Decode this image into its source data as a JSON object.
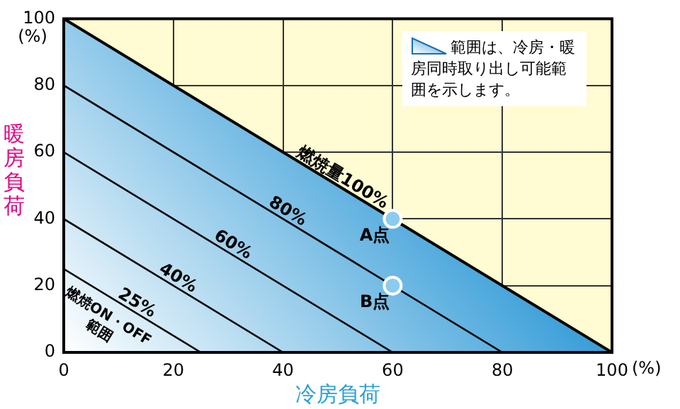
{
  "chart_data": {
    "type": "line",
    "xlabel": "冷房負荷",
    "ylabel": "暖房負荷",
    "xlim": [
      0,
      100
    ],
    "ylim": [
      0,
      100
    ],
    "xticks": [
      0,
      20,
      40,
      60,
      80,
      100
    ],
    "yticks": [
      0,
      20,
      40,
      60,
      80,
      100
    ],
    "grid": true,
    "legend": false,
    "marker": "none",
    "line_style": "solid",
    "series": [
      {
        "type": "area",
        "name": "燃焼量100%",
        "color": "#3a9fd9",
        "x": [
          0,
          100
        ],
        "values": [
          100,
          0
        ]
      },
      {
        "name": "80%",
        "color": "#000000",
        "x": [
          0,
          80
        ],
        "values": [
          80,
          0
        ]
      },
      {
        "name": "60%",
        "color": "#000000",
        "x": [
          0,
          60
        ],
        "values": [
          60,
          0
        ]
      },
      {
        "name": "40%",
        "color": "#000000",
        "x": [
          0,
          40
        ],
        "values": [
          40,
          0
        ]
      },
      {
        "name": "25%",
        "color": "#000000",
        "x": [
          0,
          25
        ],
        "values": [
          25,
          0
        ]
      },
      {
        "type": "scatter",
        "marker": "circle",
        "color": "#8ccbef",
        "x": [
          60,
          60
        ],
        "values": [
          40,
          20
        ],
        "value_labels": [
          "A点",
          "B点"
        ]
      }
    ],
    "annotations": [
      "(%)",
      "(%)",
      "範囲は、冷房・暖房同時取り出し可能範囲を示します。",
      "燃焼ON・OFF",
      "範囲"
    ]
  }
}
